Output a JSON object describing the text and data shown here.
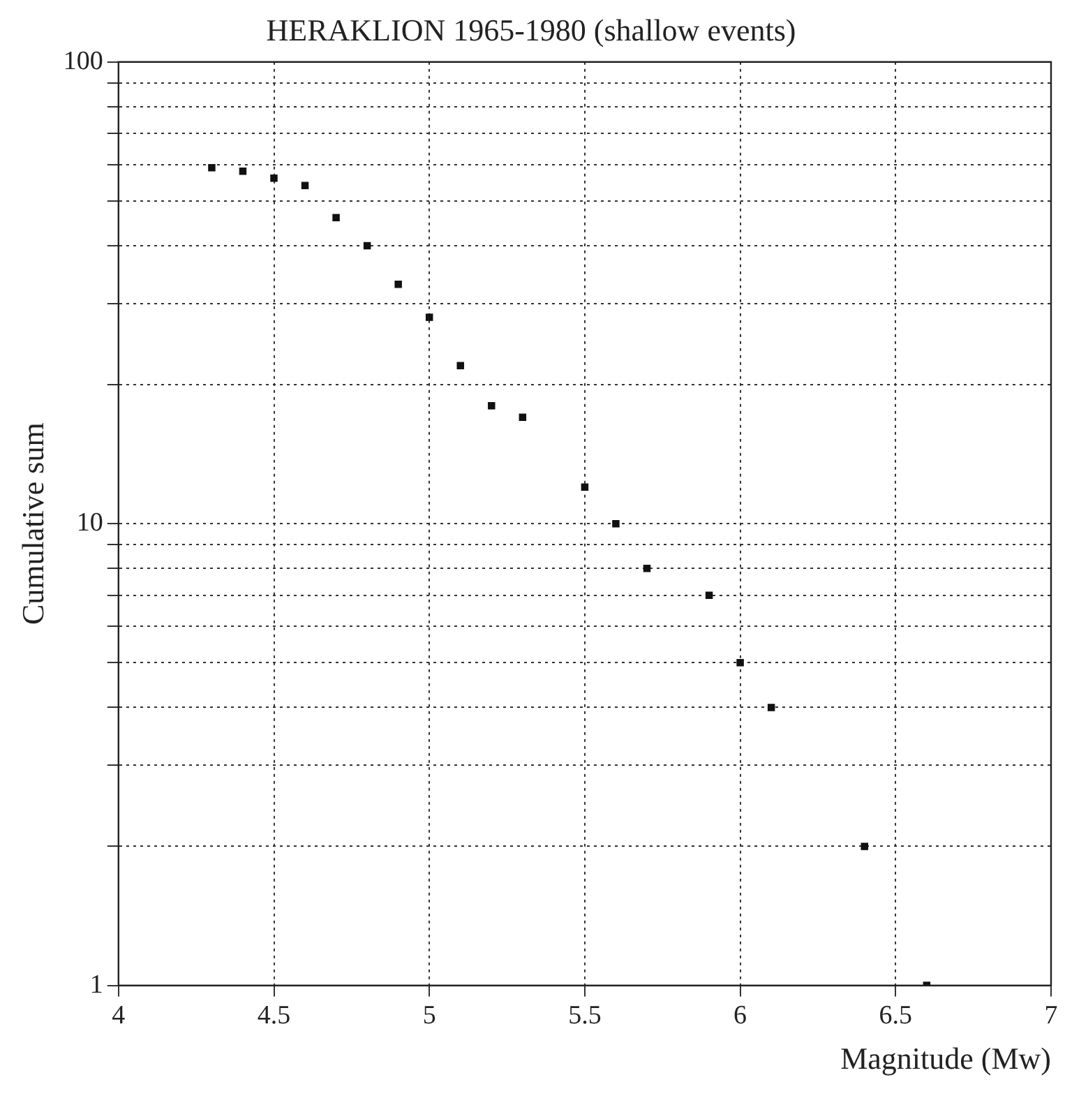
{
  "chart_data": {
    "type": "scatter",
    "title": "HERAKLION 1965-1980 (shallow events)",
    "xlabel": "Magnitude (Mw)",
    "ylabel": "Cumulative sum",
    "x": [
      4.3,
      4.4,
      4.5,
      4.6,
      4.7,
      4.8,
      4.9,
      5.0,
      5.1,
      5.2,
      5.3,
      5.5,
      5.6,
      5.7,
      5.9,
      6.0,
      6.1,
      6.4,
      6.6
    ],
    "series": [
      {
        "color": "#111111",
        "values": [
          59,
          58,
          56,
          54,
          46,
          40,
          33,
          28,
          22,
          18,
          17,
          12,
          10,
          8,
          7,
          5,
          4,
          2,
          1
        ]
      }
    ],
    "xlim": [
      4,
      7
    ],
    "xticks": [
      4,
      4.5,
      5,
      5.5,
      6,
      6.5,
      7
    ],
    "ylim": [
      1,
      100
    ],
    "yticks": [
      1,
      {
        "value": 2,
        "label": null
      },
      {
        "value": 3,
        "label": null
      },
      {
        "value": 4,
        "label": null
      },
      {
        "value": 5,
        "label": null
      },
      {
        "value": 6,
        "label": null
      },
      {
        "value": 7,
        "label": null
      },
      {
        "value": 8,
        "label": null
      },
      {
        "value": 9,
        "label": null
      },
      10,
      {
        "value": 20,
        "label": null
      },
      {
        "value": 30,
        "label": null
      },
      {
        "value": 40,
        "label": null
      },
      {
        "value": 50,
        "label": null
      },
      {
        "value": 60,
        "label": null
      },
      {
        "value": 70,
        "label": null
      },
      {
        "value": 80,
        "label": null
      },
      {
        "value": 90,
        "label": null
      },
      100
    ],
    "log": true,
    "grid": true,
    "marker": "square",
    "legend": false
  }
}
